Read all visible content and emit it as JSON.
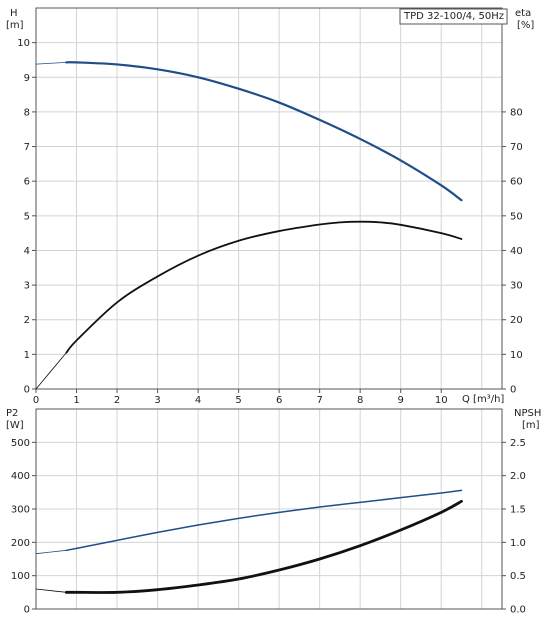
{
  "colors": {
    "head": "#1f4e89",
    "efficiency": "#111111",
    "power": "#111111",
    "npsh": "#1f4e89",
    "grid": "#d4d4d4"
  },
  "chart_data": [
    {
      "type": "line",
      "title": "TPD 32-100/4, 50Hz",
      "left_axis": {
        "label_line1": "H",
        "label_line2": "[m]",
        "range": [
          0,
          11
        ],
        "ticks": [
          "0",
          "1",
          "2",
          "3",
          "4",
          "5",
          "6",
          "7",
          "8",
          "9",
          "10"
        ]
      },
      "right_axis": {
        "label_line1": "eta",
        "label_line2": "[%]",
        "range": [
          0,
          110
        ],
        "ticks": [
          "0",
          "10",
          "20",
          "30",
          "40",
          "50",
          "60",
          "70",
          "80"
        ]
      },
      "x_axis": {
        "label": "Q [m³/h]",
        "range": [
          0,
          11.5
        ],
        "ticks": [
          "0",
          "1",
          "2",
          "3",
          "4",
          "5",
          "6",
          "7",
          "8",
          "9",
          "10"
        ]
      },
      "grid": true,
      "series": [
        {
          "name": "H",
          "axis": "left",
          "x": [
            0,
            0.75,
            1,
            2,
            3,
            4,
            5,
            6,
            7,
            8,
            9,
            10,
            10.5
          ],
          "y": [
            9.38,
            9.43,
            9.43,
            9.37,
            9.23,
            9.0,
            8.67,
            8.27,
            7.77,
            7.22,
            6.6,
            5.88,
            5.45
          ],
          "thin_below_x": 0.75
        },
        {
          "name": "eta",
          "axis": "right",
          "x": [
            0,
            0.75,
            1,
            2,
            3,
            4,
            5,
            6,
            7,
            7.5,
            8,
            8.5,
            9,
            10,
            10.5
          ],
          "y": [
            0,
            10.5,
            14,
            25,
            32.5,
            38.5,
            42.8,
            45.6,
            47.5,
            48.1,
            48.3,
            48.1,
            47.4,
            45,
            43.3
          ],
          "thin_below_x": 0.75
        }
      ]
    },
    {
      "type": "line",
      "left_axis": {
        "label_line1": "P2",
        "label_line2": "[W]",
        "range": [
          0,
          600
        ],
        "ticks": [
          "0",
          "100",
          "200",
          "300",
          "400",
          "500"
        ]
      },
      "right_axis": {
        "label_line1": "NPSH",
        "label_line2": "[m]",
        "range": [
          0,
          3
        ],
        "ticks": [
          "0.0",
          "0.5",
          "1.0",
          "1.5",
          "2.0",
          "2.5"
        ]
      },
      "x_axis": {
        "range": [
          0,
          11.5
        ]
      },
      "grid": true,
      "series": [
        {
          "name": "P2",
          "axis": "left",
          "x": [
            0,
            0.75,
            1,
            2,
            3,
            4,
            5,
            6,
            7,
            8,
            9,
            10,
            10.5
          ],
          "y": [
            60,
            50,
            50,
            50,
            58,
            72,
            90,
            117,
            150,
            190,
            237,
            290,
            323
          ],
          "thin_below_x": 0.75
        },
        {
          "name": "NPSH",
          "axis": "right",
          "x": [
            0,
            0.75,
            1,
            2,
            3,
            4,
            5,
            6,
            7,
            8,
            9,
            10,
            10.5
          ],
          "y": [
            0.83,
            0.88,
            0.91,
            1.03,
            1.15,
            1.26,
            1.36,
            1.45,
            1.53,
            1.6,
            1.67,
            1.74,
            1.78
          ],
          "thin_below_x": 0.75
        }
      ]
    }
  ]
}
